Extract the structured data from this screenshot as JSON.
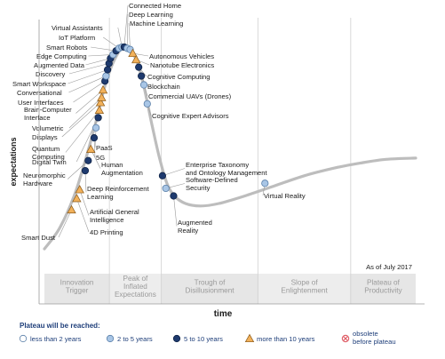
{
  "chart_data": {
    "type": "scatter",
    "title": "",
    "ylabel": "expectations",
    "xlabel": "time",
    "as_of": "As of July 2017",
    "xlim": [
      0,
      100
    ],
    "ylim": [
      0,
      100
    ],
    "grid": false,
    "phases": [
      {
        "name": "innovation-trigger",
        "lines": [
          "Innovation",
          "Trigger"
        ],
        "x0": 0,
        "x1": 17.5
      },
      {
        "name": "peak-of-inflated-expectations",
        "lines": [
          "Peak of",
          "Inflated",
          "Expectations"
        ],
        "x0": 17.5,
        "x1": 31.5
      },
      {
        "name": "trough-of-disillusionment",
        "lines": [
          "Trough of",
          "Disillusionment"
        ],
        "x0": 31.5,
        "x1": 57.5
      },
      {
        "name": "slope-of-enlightenment",
        "lines": [
          "Slope of",
          "Enlightenment"
        ],
        "x0": 57.5,
        "x1": 82.5
      },
      {
        "name": "plateau-of-productivity",
        "lines": [
          "Plateau of",
          "Productivity"
        ],
        "x0": 82.5,
        "x1": 100
      }
    ],
    "curve": [
      [
        0,
        7
      ],
      [
        4,
        15
      ],
      [
        8,
        28
      ],
      [
        11,
        42
      ],
      [
        14,
        58
      ],
      [
        16,
        70
      ],
      [
        18,
        79
      ],
      [
        20,
        85
      ],
      [
        21.5,
        87
      ],
      [
        23,
        86
      ],
      [
        25,
        81
      ],
      [
        27,
        70
      ],
      [
        29,
        56
      ],
      [
        31,
        43
      ],
      [
        33,
        33
      ],
      [
        35,
        28
      ],
      [
        38,
        25
      ],
      [
        42,
        24
      ],
      [
        47,
        25
      ],
      [
        54,
        28
      ],
      [
        62,
        32
      ],
      [
        70,
        36
      ],
      [
        78,
        39
      ],
      [
        85,
        41
      ],
      [
        92,
        42.5
      ],
      [
        100,
        43
      ]
    ],
    "legend": {
      "title": "Plateau will be reached:",
      "items": [
        {
          "key": "lt2",
          "label": "less than 2 years",
          "color": "#ffffff"
        },
        {
          "key": "2to5",
          "label": "2 to 5 years",
          "color": "#a9c6e6"
        },
        {
          "key": "5to10",
          "label": "5 to 10 years",
          "color": "#1e3a6e"
        },
        {
          "key": "gt10",
          "label": "more than 10 years",
          "color": "#f2b15a"
        },
        {
          "key": "obsolete",
          "label": "obsolete before plateau",
          "color": "#e0616a"
        }
      ]
    },
    "points": [
      {
        "label": "Smart Dust",
        "x": 7.3,
        "y": 22.5,
        "cat": "gt10"
      },
      {
        "label": "4D Printing",
        "x": 8.7,
        "y": 27,
        "cat": "gt10"
      },
      {
        "label": "Artificial General Intelligence",
        "x": 9.5,
        "y": 30.5,
        "cat": "gt10"
      },
      {
        "label": "Deep Reinforcement Learning",
        "x": 11,
        "y": 38,
        "cat": "5to10"
      },
      {
        "label": "Neuromorphic Hardware",
        "x": 11.8,
        "y": 42,
        "cat": "5to10"
      },
      {
        "label": "Human Augmentation",
        "x": 12.5,
        "y": 46.5,
        "cat": "gt10"
      },
      {
        "label": "5G",
        "x": 13.4,
        "y": 51,
        "cat": "5to10"
      },
      {
        "label": "PaaS",
        "x": 13.9,
        "y": 55,
        "cat": "2to5"
      },
      {
        "label": "Digital Twin",
        "x": 14.5,
        "y": 59,
        "cat": "5to10"
      },
      {
        "label": "Quantum Computing",
        "x": 14.8,
        "y": 62,
        "cat": "gt10"
      },
      {
        "label": "Displays",
        "x": 15.1,
        "y": 65,
        "cat": "gt10"
      },
      {
        "label": "Volumetric",
        "x": 15.4,
        "y": 67,
        "cat": "gt10"
      },
      {
        "label": "Brain-Computer Interface",
        "x": 15.8,
        "y": 70,
        "cat": "gt10"
      },
      {
        "label": "User Interfaces",
        "x": 16.3,
        "y": 73.5,
        "cat": "5to10"
      },
      {
        "label": "Conversational",
        "x": 16.6,
        "y": 75.5,
        "cat": "2to5"
      },
      {
        "label": "Smart Workspace",
        "x": 17,
        "y": 78,
        "cat": "5to10"
      },
      {
        "label": "Discovery",
        "x": 17.4,
        "y": 80.5,
        "cat": "5to10"
      },
      {
        "label": "Augmented Data",
        "x": 17.8,
        "y": 82.5,
        "cat": "5to10"
      },
      {
        "label": "Edge Computing",
        "x": 18.5,
        "y": 84,
        "cat": "2to5"
      },
      {
        "label": "Smart Robots",
        "x": 19.3,
        "y": 85.5,
        "cat": "5to10"
      },
      {
        "label": "IoT Platform",
        "x": 20.1,
        "y": 86.5,
        "cat": "2to5"
      },
      {
        "label": "Virtual Assistants",
        "x": 20.9,
        "y": 87,
        "cat": "2to5"
      },
      {
        "label": "Connected Home",
        "x": 21.5,
        "y": 87,
        "cat": "5to10"
      },
      {
        "label": "Deep Learning",
        "x": 22.3,
        "y": 86.5,
        "cat": "2to5"
      },
      {
        "label": "Machine Learning",
        "x": 23.1,
        "y": 86,
        "cat": "2to5"
      },
      {
        "label": "Autonomous Vehicles",
        "x": 23.8,
        "y": 84.5,
        "cat": "gt10"
      },
      {
        "label": "Nanotube Electronics",
        "x": 24.7,
        "y": 82,
        "cat": "gt10"
      },
      {
        "label": "Cognitive Computing",
        "x": 25.4,
        "y": 79,
        "cat": "5to10"
      },
      {
        "label": "Blockchain",
        "x": 26.1,
        "y": 75.5,
        "cat": "5to10"
      },
      {
        "label": "Commercial UAVs (Drones)",
        "x": 26.8,
        "y": 72,
        "cat": "2to5"
      },
      {
        "label": "Cognitive Expert Advisors",
        "x": 27.7,
        "y": 64.5,
        "cat": "2to5"
      },
      {
        "label": "Enterprise Taxonomy and Ontology Management",
        "x": 31.8,
        "y": 36,
        "cat": "5to10"
      },
      {
        "label": "Software-Defined Security",
        "x": 32.7,
        "y": 31,
        "cat": "2to5"
      },
      {
        "label": "Augmented Reality",
        "x": 34.8,
        "y": 28,
        "cat": "5to10"
      },
      {
        "label": "Virtual Reality",
        "x": 59.4,
        "y": 33,
        "cat": "2to5"
      }
    ],
    "labels": [
      {
        "ref": 0,
        "lines": [
          "Smart Dust"
        ],
        "anchor": "end"
      },
      {
        "ref": 1,
        "lines": [
          "4D Printing"
        ],
        "anchor": "start"
      },
      {
        "ref": 2,
        "lines": [
          "Artificial General",
          "Intelligence"
        ],
        "anchor": "start"
      },
      {
        "ref": 3,
        "lines": [
          "Deep Reinforcement",
          "Learning"
        ],
        "anchor": "start"
      },
      {
        "ref": 4,
        "lines": [
          "Neuromorphic",
          "Hardware"
        ],
        "anchor": "end"
      },
      {
        "ref": 5,
        "lines": [
          "Human",
          "Augmentation"
        ],
        "anchor": "start"
      },
      {
        "ref": 6,
        "lines": [
          "5G"
        ],
        "anchor": "start"
      },
      {
        "ref": 7,
        "lines": [
          "PaaS"
        ],
        "anchor": "start"
      },
      {
        "ref": 8,
        "lines": [
          "Digital Twin"
        ],
        "anchor": "end"
      },
      {
        "ref": 9,
        "lines": [
          "Quantum",
          "Computing"
        ],
        "anchor": "end"
      },
      {
        "ref": 10,
        "lines": [
          "Displays"
        ],
        "anchor": "end"
      },
      {
        "ref": 11,
        "lines": [
          "Volumetric"
        ],
        "anchor": "end"
      },
      {
        "ref": 12,
        "lines": [
          "Brain-Computer",
          "Interface"
        ],
        "anchor": "end"
      },
      {
        "ref": 13,
        "lines": [
          "User Interfaces"
        ],
        "anchor": "end"
      },
      {
        "ref": 14,
        "lines": [
          "Conversational"
        ],
        "anchor": "end"
      },
      {
        "ref": 15,
        "lines": [
          "Smart Workspace"
        ],
        "anchor": "end"
      },
      {
        "ref": 16,
        "lines": [
          "Discovery"
        ],
        "anchor": "end"
      },
      {
        "ref": 17,
        "lines": [
          "Augmented Data"
        ],
        "anchor": "end"
      },
      {
        "ref": 18,
        "lines": [
          "Edge Computing"
        ],
        "anchor": "end"
      },
      {
        "ref": 19,
        "lines": [
          "Smart Robots"
        ],
        "anchor": "end"
      },
      {
        "ref": 20,
        "lines": [
          "IoT Platform"
        ],
        "anchor": "end"
      },
      {
        "ref": 21,
        "lines": [
          "Virtual Assistants"
        ],
        "anchor": "end"
      },
      {
        "ref": 22,
        "lines": [
          "Connected Home"
        ],
        "anchor": "start"
      },
      {
        "ref": 23,
        "lines": [
          "Deep Learning"
        ],
        "anchor": "start"
      },
      {
        "ref": 24,
        "lines": [
          "Machine Learning"
        ],
        "anchor": "start"
      },
      {
        "ref": 25,
        "lines": [
          "Autonomous Vehicles"
        ],
        "anchor": "start"
      },
      {
        "ref": 26,
        "lines": [
          "Nanotube Electronics"
        ],
        "anchor": "start"
      },
      {
        "ref": 27,
        "lines": [
          "Cognitive Computing"
        ],
        "anchor": "start"
      },
      {
        "ref": 28,
        "lines": [
          "Blockchain"
        ],
        "anchor": "start"
      },
      {
        "ref": 29,
        "lines": [
          "Commercial UAVs (Drones)"
        ],
        "anchor": "start"
      },
      {
        "ref": 30,
        "lines": [
          "Cognitive Expert Advisors"
        ],
        "anchor": "start"
      },
      {
        "ref": 31,
        "lines": [
          "Enterprise Taxonomy",
          "and Ontology Management"
        ],
        "anchor": "start"
      },
      {
        "ref": 32,
        "lines": [
          "Software-Defined",
          "Security"
        ],
        "anchor": "start"
      },
      {
        "ref": 33,
        "lines": [
          "Augmented",
          "Reality"
        ],
        "anchor": "start"
      },
      {
        "ref": 34,
        "lines": [
          "Virtual Reality"
        ],
        "anchor": "start"
      }
    ]
  }
}
